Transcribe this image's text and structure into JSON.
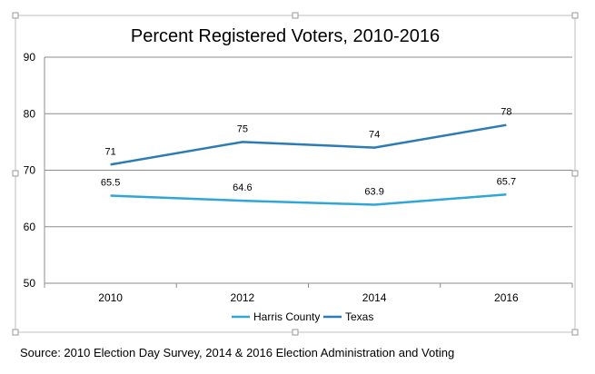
{
  "chart_data": {
    "type": "line",
    "title": "Percent Registered Voters, 2010-2016",
    "categories": [
      "2010",
      "2012",
      "2014",
      "2016"
    ],
    "series": [
      {
        "name": "Harris County",
        "values": [
          65.5,
          64.6,
          63.9,
          65.7
        ],
        "labels": [
          "65.5",
          "64.6",
          "63.9",
          "65.7"
        ],
        "color": "#2fa6d8"
      },
      {
        "name": "Texas",
        "values": [
          71,
          75,
          74,
          78
        ],
        "labels": [
          "71",
          "75",
          "74",
          "78"
        ],
        "color": "#2b7bb5"
      }
    ],
    "ylim": [
      50,
      90
    ],
    "yticks": [
      "50",
      "60",
      "70",
      "80",
      "90"
    ],
    "grid": true,
    "legend": "bottom"
  },
  "source_note": "Source: 2010 Election Day Survey, 2014 & 2016 Election Administration and Voting",
  "colors": {
    "gridline": "#8c8c8c",
    "axis": "#8c8c8c",
    "frame": "#bfbfbf"
  }
}
